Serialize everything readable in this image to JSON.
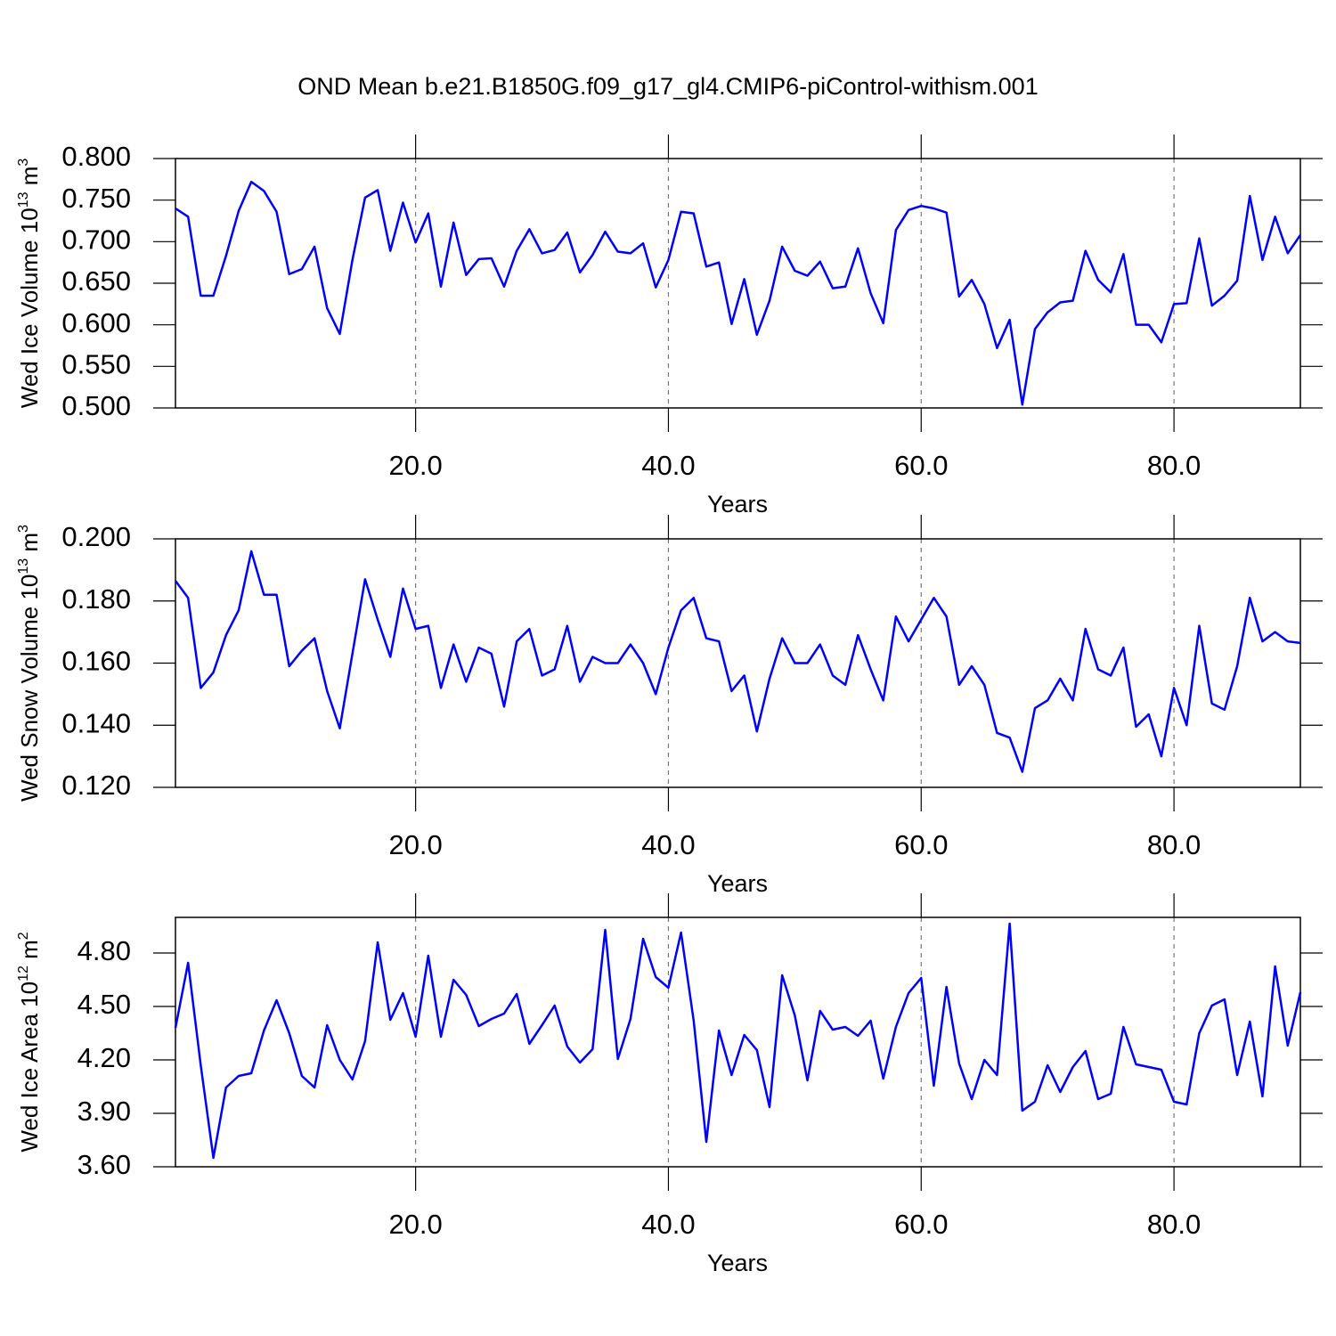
{
  "title": "OND Mean b.e21.B1850G.f09_g17_gl4.CMIP6-piControl-withism.001",
  "chart_data": [
    {
      "type": "line",
      "ylabel": [
        "Wed Ice Volume 10",
        "13",
        " m",
        "3"
      ],
      "xlabel": "Years",
      "x": [
        1,
        2,
        3,
        4,
        5,
        6,
        7,
        8,
        9,
        10,
        11,
        12,
        13,
        14,
        15,
        16,
        17,
        18,
        19,
        20,
        21,
        22,
        23,
        24,
        25,
        26,
        27,
        28,
        29,
        30,
        31,
        32,
        33,
        34,
        35,
        36,
        37,
        38,
        39,
        40,
        41,
        42,
        43,
        44,
        45,
        46,
        47,
        48,
        49,
        50,
        51,
        52,
        53,
        54,
        55,
        56,
        57,
        58,
        59,
        60,
        61,
        62,
        63,
        64,
        65,
        66,
        67,
        68,
        69,
        70,
        71,
        72,
        73,
        74,
        75,
        76,
        77,
        78,
        79,
        80,
        81,
        82,
        83,
        84,
        85,
        86,
        87,
        88,
        89,
        90
      ],
      "series": [
        {
          "color": "#0000ff",
          "values": [
            0.74,
            0.73,
            0.635,
            0.635,
            0.683,
            0.737,
            0.772,
            0.761,
            0.736,
            0.661,
            0.667,
            0.694,
            0.62,
            0.589,
            0.678,
            0.753,
            0.762,
            0.689,
            0.747,
            0.699,
            0.734,
            0.646,
            0.723,
            0.66,
            0.679,
            0.68,
            0.646,
            0.689,
            0.715,
            0.686,
            0.69,
            0.711,
            0.663,
            0.684,
            0.712,
            0.688,
            0.686,
            0.698,
            0.645,
            0.678,
            0.736,
            0.734,
            0.67,
            0.675,
            0.601,
            0.655,
            0.588,
            0.629,
            0.694,
            0.665,
            0.659,
            0.676,
            0.644,
            0.646,
            0.692,
            0.638,
            0.602,
            0.714,
            0.738,
            0.743,
            0.74,
            0.735,
            0.634,
            0.654,
            0.625,
            0.572,
            0.606,
            0.504,
            0.595,
            0.615,
            0.627,
            0.629,
            0.689,
            0.654,
            0.639,
            0.685,
            0.6,
            0.6,
            0.579,
            0.625,
            0.626,
            0.704,
            0.623,
            0.635,
            0.653,
            0.755,
            0.678,
            0.73,
            0.686,
            0.708
          ]
        }
      ],
      "xlim": [
        1,
        90
      ],
      "xticks": [
        {
          "value": 20,
          "label": "20.0"
        },
        {
          "value": 40,
          "label": "40.0"
        },
        {
          "value": 60,
          "label": "60.0"
        },
        {
          "value": 80,
          "label": "80.0"
        }
      ],
      "xgrid": true,
      "ylim": [
        0.5,
        0.8
      ],
      "yticks": [
        {
          "value": 0.5,
          "label": "0.500"
        },
        {
          "value": 0.55,
          "label": "0.550"
        },
        {
          "value": 0.6,
          "label": "0.600"
        },
        {
          "value": 0.65,
          "label": "0.650"
        },
        {
          "value": 0.7,
          "label": "0.700"
        },
        {
          "value": 0.75,
          "label": "0.750"
        },
        {
          "value": 0.8,
          "label": "0.800"
        }
      ]
    },
    {
      "type": "line",
      "ylabel": [
        "Wed Snow Volume 10",
        "13",
        " m",
        "3"
      ],
      "xlabel": "Years",
      "x": [
        1,
        2,
        3,
        4,
        5,
        6,
        7,
        8,
        9,
        10,
        11,
        12,
        13,
        14,
        15,
        16,
        17,
        18,
        19,
        20,
        21,
        22,
        23,
        24,
        25,
        26,
        27,
        28,
        29,
        30,
        31,
        32,
        33,
        34,
        35,
        36,
        37,
        38,
        39,
        40,
        41,
        42,
        43,
        44,
        45,
        46,
        47,
        48,
        49,
        50,
        51,
        52,
        53,
        54,
        55,
        56,
        57,
        58,
        59,
        60,
        61,
        62,
        63,
        64,
        65,
        66,
        67,
        68,
        69,
        70,
        71,
        72,
        73,
        74,
        75,
        76,
        77,
        78,
        79,
        80,
        81,
        82,
        83,
        84,
        85,
        86,
        87,
        88,
        89,
        90
      ],
      "series": [
        {
          "color": "#0000ff",
          "values": [
            0.1865,
            0.181,
            0.152,
            0.157,
            0.169,
            0.177,
            0.196,
            0.182,
            0.182,
            0.159,
            0.164,
            0.168,
            0.151,
            0.139,
            0.163,
            0.187,
            0.174,
            0.162,
            0.184,
            0.171,
            0.172,
            0.152,
            0.166,
            0.154,
            0.165,
            0.163,
            0.146,
            0.167,
            0.171,
            0.156,
            0.158,
            0.172,
            0.154,
            0.162,
            0.16,
            0.16,
            0.166,
            0.16,
            0.15,
            0.165,
            0.177,
            0.181,
            0.168,
            0.167,
            0.151,
            0.156,
            0.138,
            0.155,
            0.168,
            0.16,
            0.16,
            0.166,
            0.156,
            0.153,
            0.169,
            0.158,
            0.148,
            0.175,
            0.167,
            0.174,
            0.181,
            0.175,
            0.153,
            0.159,
            0.153,
            0.1375,
            0.136,
            0.125,
            0.1455,
            0.148,
            0.155,
            0.148,
            0.171,
            0.158,
            0.156,
            0.165,
            0.1395,
            0.1435,
            0.13,
            0.152,
            0.14,
            0.172,
            0.147,
            0.145,
            0.159,
            0.181,
            0.167,
            0.17,
            0.167,
            0.1665
          ]
        }
      ],
      "xlim": [
        1,
        90
      ],
      "xticks": [
        {
          "value": 20,
          "label": "20.0"
        },
        {
          "value": 40,
          "label": "40.0"
        },
        {
          "value": 60,
          "label": "60.0"
        },
        {
          "value": 80,
          "label": "80.0"
        }
      ],
      "xgrid": true,
      "ylim": [
        0.12,
        0.2
      ],
      "yticks": [
        {
          "value": 0.12,
          "label": "0.120"
        },
        {
          "value": 0.14,
          "label": "0.140"
        },
        {
          "value": 0.16,
          "label": "0.160"
        },
        {
          "value": 0.18,
          "label": "0.180"
        },
        {
          "value": 0.2,
          "label": "0.200"
        }
      ]
    },
    {
      "type": "line",
      "ylabel": [
        "Wed Ice Area 10",
        "12",
        " m",
        "2"
      ],
      "xlabel": "Years",
      "x": [
        1,
        2,
        3,
        4,
        5,
        6,
        7,
        8,
        9,
        10,
        11,
        12,
        13,
        14,
        15,
        16,
        17,
        18,
        19,
        20,
        21,
        22,
        23,
        24,
        25,
        26,
        27,
        28,
        29,
        30,
        31,
        32,
        33,
        34,
        35,
        36,
        37,
        38,
        39,
        40,
        41,
        42,
        43,
        44,
        45,
        46,
        47,
        48,
        49,
        50,
        51,
        52,
        53,
        54,
        55,
        56,
        57,
        58,
        59,
        60,
        61,
        62,
        63,
        64,
        65,
        66,
        67,
        68,
        69,
        70,
        71,
        72,
        73,
        74,
        75,
        76,
        77,
        78,
        79,
        80,
        81,
        82,
        83,
        84,
        85,
        86,
        87,
        88,
        89,
        90
      ],
      "series": [
        {
          "color": "#0000ff",
          "values": [
            4.38,
            4.745,
            4.17,
            3.65,
            4.045,
            4.11,
            4.125,
            4.365,
            4.535,
            4.35,
            4.11,
            4.045,
            4.395,
            4.2,
            4.09,
            4.305,
            4.86,
            4.425,
            4.575,
            4.33,
            4.785,
            4.33,
            4.65,
            4.565,
            4.39,
            4.43,
            4.46,
            4.57,
            4.29,
            4.395,
            4.505,
            4.275,
            4.185,
            4.26,
            4.93,
            4.205,
            4.43,
            4.88,
            4.665,
            4.605,
            4.915,
            4.42,
            3.74,
            4.365,
            4.115,
            4.34,
            4.255,
            3.935,
            4.675,
            4.45,
            4.085,
            4.475,
            4.37,
            4.385,
            4.335,
            4.42,
            4.095,
            4.385,
            4.575,
            4.66,
            4.055,
            4.61,
            4.18,
            3.98,
            4.2,
            4.115,
            4.965,
            3.915,
            3.965,
            4.17,
            4.02,
            4.16,
            4.25,
            3.98,
            4.01,
            4.385,
            4.175,
            4.16,
            4.145,
            3.965,
            3.95,
            4.35,
            4.505,
            4.54,
            4.115,
            4.415,
            3.995,
            4.725,
            4.28,
            4.58
          ]
        }
      ],
      "xlim": [
        1,
        90
      ],
      "xticks": [
        {
          "value": 20,
          "label": "20.0"
        },
        {
          "value": 40,
          "label": "40.0"
        },
        {
          "value": 60,
          "label": "60.0"
        },
        {
          "value": 80,
          "label": "80.0"
        }
      ],
      "xgrid": true,
      "ylim": [
        3.6,
        5.0
      ],
      "yticks": [
        {
          "value": 3.6,
          "label": "3.60"
        },
        {
          "value": 3.9,
          "label": "3.90"
        },
        {
          "value": 4.2,
          "label": "4.20"
        },
        {
          "value": 4.5,
          "label": "4.50"
        },
        {
          "value": 4.8,
          "label": "4.80"
        }
      ]
    }
  ]
}
